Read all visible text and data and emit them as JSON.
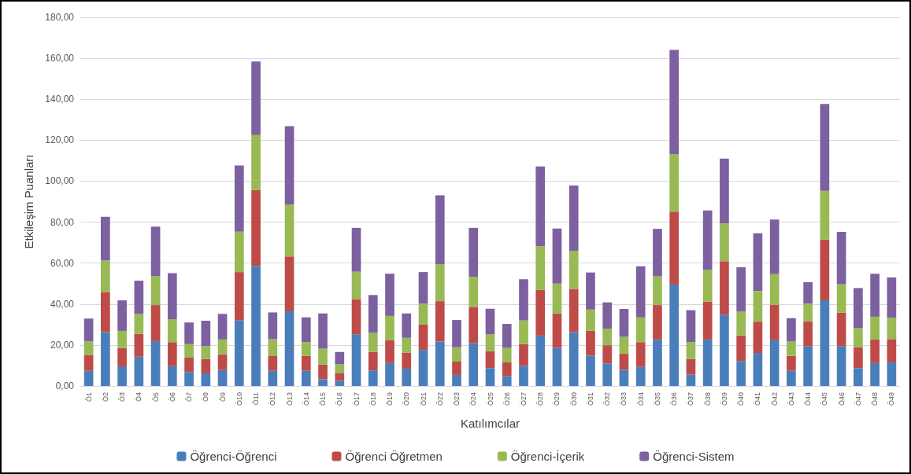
{
  "chart_data": {
    "type": "bar",
    "stacked": true,
    "xlabel": "Katılımcılar",
    "ylabel": "Etkileşim Puanları",
    "categories": [
      "Ö1",
      "Ö2",
      "Ö3",
      "Ö4",
      "Ö5",
      "Ö6",
      "Ö7",
      "Ö8",
      "Ö9",
      "Ö10",
      "Ö11",
      "Ö12",
      "Ö13",
      "Ö14",
      "Ö15",
      "Ö16",
      "Ö17",
      "Ö18",
      "Ö19",
      "Ö20",
      "Ö21",
      "Ö22",
      "Ö23",
      "Ö24",
      "Ö25",
      "Ö26",
      "Ö27",
      "Ö28",
      "Ö29",
      "Ö30",
      "Ö31",
      "Ö32",
      "Ö33",
      "Ö34",
      "Ö35",
      "Ö36",
      "Ö37",
      "Ö38",
      "Ö39",
      "Ö40",
      "Ö41",
      "Ö42",
      "Ö43",
      "Ö44",
      "Ö45",
      "Ö46",
      "Ö47",
      "Ö48",
      "Ö49"
    ],
    "series": [
      {
        "name": "Öğrenci-Öğrenci",
        "color": "#4a7ebb",
        "values": [
          7.4,
          26.3,
          9.6,
          14.3,
          21.9,
          9.7,
          6.8,
          6.1,
          7.8,
          32.0,
          58.6,
          7.4,
          36.5,
          7.4,
          3.3,
          2.5,
          25.2,
          7.6,
          11.2,
          8.4,
          17.6,
          21.7,
          5.4,
          21.0,
          8.7,
          4.8,
          9.8,
          24.6,
          18.6,
          26.3,
          14.8,
          11.0,
          7.9,
          9.3,
          22.7,
          49.5,
          5.5,
          22.7,
          34.8,
          12.2,
          16.1,
          22.3,
          7.4,
          19.5,
          41.8,
          19.5,
          8.7,
          11.2,
          11.5
        ]
      },
      {
        "name": "Öğrenci Öğretmen",
        "color": "#be4b48",
        "values": [
          7.6,
          19.6,
          8.9,
          11.2,
          17.6,
          11.7,
          7.0,
          7.0,
          7.5,
          23.6,
          37.0,
          7.4,
          26.7,
          7.3,
          7.2,
          3.9,
          17.2,
          9.0,
          11.1,
          7.9,
          12.4,
          19.7,
          6.5,
          17.6,
          8.3,
          6.7,
          10.7,
          22.3,
          16.8,
          21.1,
          12.2,
          8.9,
          7.8,
          12.1,
          16.8,
          35.6,
          7.6,
          18.5,
          26.1,
          12.5,
          15.3,
          17.3,
          7.3,
          12.1,
          29.7,
          16.3,
          10.2,
          11.5,
          11.4
        ]
      },
      {
        "name": "Öğrenci-İçerik",
        "color": "#98b954",
        "values": [
          6.8,
          15.4,
          8.4,
          9.7,
          14.2,
          11.2,
          6.6,
          6.4,
          7.4,
          19.7,
          26.9,
          8.1,
          25.5,
          6.7,
          7.7,
          4.2,
          13.4,
          9.3,
          11.9,
          7.2,
          10.2,
          18.0,
          7.0,
          14.7,
          8.2,
          7.1,
          11.5,
          21.3,
          14.6,
          18.6,
          10.3,
          8.1,
          8.3,
          12.1,
          14.0,
          28.1,
          8.3,
          15.5,
          18.5,
          11.6,
          15.0,
          15.0,
          7.0,
          8.6,
          23.8,
          13.9,
          9.5,
          11.1,
          10.4
        ]
      },
      {
        "name": "Öğrenci-Sistem",
        "color": "#7d60a0",
        "values": [
          11.1,
          21.3,
          14.9,
          16.2,
          24.1,
          22.5,
          10.6,
          12.4,
          12.5,
          32.4,
          35.9,
          13.0,
          38.1,
          12.1,
          17.2,
          6.0,
          21.4,
          18.5,
          20.6,
          11.9,
          15.4,
          33.7,
          13.3,
          23.9,
          12.5,
          11.7,
          20.1,
          39.0,
          26.9,
          31.9,
          18.1,
          12.8,
          13.6,
          24.9,
          23.2,
          50.9,
          15.6,
          29.0,
          31.6,
          21.7,
          28.2,
          26.7,
          11.4,
          10.5,
          42.4,
          25.5,
          19.4,
          21.0,
          19.7
        ]
      }
    ],
    "ylim": [
      0,
      180
    ],
    "yticks": [
      {
        "value": 0,
        "label": "0,00"
      },
      {
        "value": 20,
        "label": "20,00"
      },
      {
        "value": 40,
        "label": "40,00"
      },
      {
        "value": 60,
        "label": "60,00"
      },
      {
        "value": 80,
        "label": "80,00"
      },
      {
        "value": 100,
        "label": "100,00"
      },
      {
        "value": 120,
        "label": "120,00"
      },
      {
        "value": 140,
        "label": "140,00"
      },
      {
        "value": 160,
        "label": "160,00"
      },
      {
        "value": 180,
        "label": "180,00"
      }
    ],
    "grid": "y",
    "legend": "bottom"
  }
}
